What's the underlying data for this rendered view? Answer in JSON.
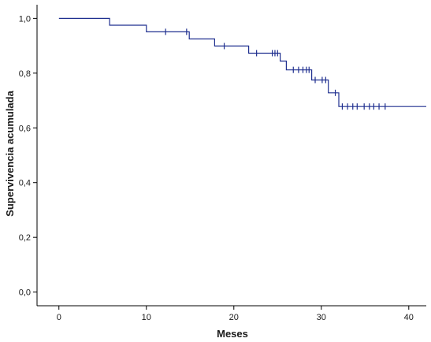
{
  "chart_data": {
    "type": "line",
    "subtype": "kaplan-meier-step",
    "title": "",
    "xlabel": "Meses",
    "ylabel": "Supervivencia acumulada",
    "xlim": [
      -2.5,
      42
    ],
    "ylim": [
      -0.05,
      1.05
    ],
    "x_ticks": [
      0,
      10,
      20,
      30,
      40
    ],
    "x_tick_labels": [
      "0",
      "10",
      "20",
      "30",
      "40"
    ],
    "y_ticks": [
      0.0,
      0.2,
      0.4,
      0.6,
      0.8,
      1.0
    ],
    "y_tick_labels": [
      "0,0",
      "0,2",
      "0,4",
      "0,6",
      "0,8",
      "1,0"
    ],
    "grid": false,
    "legend": "none",
    "line_color": "#1f2f8f",
    "series": [
      {
        "steps": [
          {
            "x": 0.0,
            "y": 1.0
          },
          {
            "x": 5.8,
            "y": 0.975
          },
          {
            "x": 10.0,
            "y": 0.951
          },
          {
            "x": 14.9,
            "y": 0.925
          },
          {
            "x": 17.8,
            "y": 0.899
          },
          {
            "x": 21.7,
            "y": 0.873
          },
          {
            "x": 25.3,
            "y": 0.844
          },
          {
            "x": 26.0,
            "y": 0.812
          },
          {
            "x": 28.9,
            "y": 0.775
          },
          {
            "x": 30.8,
            "y": 0.728
          },
          {
            "x": 32.0,
            "y": 0.678
          },
          {
            "x": 42.0,
            "y": 0.678
          }
        ],
        "censored": [
          {
            "x": 12.2,
            "y": 0.951
          },
          {
            "x": 14.6,
            "y": 0.951
          },
          {
            "x": 18.9,
            "y": 0.899
          },
          {
            "x": 22.6,
            "y": 0.873
          },
          {
            "x": 24.4,
            "y": 0.873
          },
          {
            "x": 24.7,
            "y": 0.873
          },
          {
            "x": 25.0,
            "y": 0.873
          },
          {
            "x": 26.8,
            "y": 0.812
          },
          {
            "x": 27.4,
            "y": 0.812
          },
          {
            "x": 27.9,
            "y": 0.812
          },
          {
            "x": 28.3,
            "y": 0.812
          },
          {
            "x": 28.6,
            "y": 0.812
          },
          {
            "x": 29.3,
            "y": 0.775
          },
          {
            "x": 30.1,
            "y": 0.775
          },
          {
            "x": 30.5,
            "y": 0.775
          },
          {
            "x": 31.6,
            "y": 0.728
          },
          {
            "x": 32.4,
            "y": 0.678
          },
          {
            "x": 33.0,
            "y": 0.678
          },
          {
            "x": 33.6,
            "y": 0.678
          },
          {
            "x": 34.1,
            "y": 0.678
          },
          {
            "x": 34.9,
            "y": 0.678
          },
          {
            "x": 35.5,
            "y": 0.678
          },
          {
            "x": 36.0,
            "y": 0.678
          },
          {
            "x": 36.6,
            "y": 0.678
          },
          {
            "x": 37.3,
            "y": 0.678
          }
        ]
      }
    ]
  }
}
